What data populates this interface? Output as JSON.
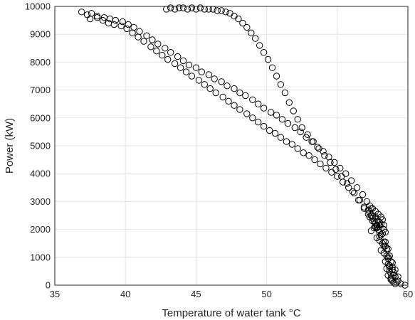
{
  "chart_data": {
    "type": "scatter",
    "title": "",
    "xlabel": "Temperature of water tank °C",
    "ylabel": "Power (kW)",
    "xlim": [
      35,
      60
    ],
    "ylim": [
      0,
      10000
    ],
    "xticks": [
      35,
      40,
      45,
      50,
      55,
      60
    ],
    "yticks": [
      0,
      1000,
      2000,
      3000,
      4000,
      5000,
      6000,
      7000,
      8000,
      9000,
      10000
    ],
    "xtick_labels": [
      "35",
      "40",
      "45",
      "50",
      "55",
      "60"
    ],
    "ytick_labels": [
      "0",
      "1000",
      "2000",
      "3000",
      "4000",
      "5000",
      "6000",
      "7000",
      "8000",
      "9000",
      "10000"
    ],
    "grid": true,
    "marker": "circle-open",
    "colors": {
      "marker": "#000000",
      "grid": "#e3e3e3",
      "axis": "#262626"
    },
    "series": [
      {
        "x": [
          36.9,
          37.3,
          37.6,
          38.0,
          38.5,
          38.9,
          39.3,
          39.8,
          40.2,
          40.6,
          41.0,
          41.5,
          41.9,
          42.3,
          42.8,
          43.2,
          43.7,
          44.1,
          44.5,
          45.0,
          45.4,
          45.9,
          46.3,
          46.8,
          47.2,
          47.7,
          48.1,
          48.5,
          49.0,
          49.4,
          49.8,
          50.3,
          50.7,
          51.1,
          51.5,
          52.0,
          52.4,
          52.8,
          53.2,
          53.6,
          54.0,
          54.4,
          54.8,
          55.2,
          55.6,
          56.0,
          56.4,
          56.8,
          57.1,
          57.4,
          57.7,
          58.0,
          58.2,
          58.4,
          58.6,
          58.7,
          58.8,
          58.9,
          59.0,
          59.1,
          59.3,
          59.5,
          59.8
        ],
        "y": [
          9800,
          9700,
          9750,
          9650,
          9600,
          9550,
          9500,
          9450,
          9350,
          9250,
          9100,
          8950,
          8800,
          8650,
          8500,
          8350,
          8200,
          8050,
          7900,
          7800,
          7650,
          7550,
          7400,
          7300,
          7150,
          7050,
          6900,
          6800,
          6650,
          6500,
          6350,
          6200,
          6100,
          5950,
          5800,
          5650,
          5500,
          5300,
          5150,
          4950,
          4800,
          4600,
          4400,
          4200,
          4000,
          3750,
          3500,
          3250,
          3000,
          2750,
          2450,
          2150,
          1850,
          1550,
          1300,
          1050,
          850,
          650,
          450,
          300,
          150,
          50,
          0
        ]
      },
      {
        "x": [
          37.5,
          38.0,
          38.4,
          38.8,
          39.2,
          39.7,
          40.1,
          40.5,
          40.9,
          41.3,
          41.8,
          42.2,
          42.6,
          43.0,
          43.5,
          43.9,
          44.3,
          44.7,
          45.2,
          45.6,
          46.0,
          46.4,
          46.9,
          47.3,
          47.7,
          48.1,
          48.6,
          49.0,
          49.4,
          49.8,
          50.2,
          50.6,
          51.0,
          51.4,
          51.8,
          52.2,
          52.6,
          53.0,
          53.4,
          53.8,
          54.2,
          54.6,
          55.0,
          55.4,
          55.8,
          56.2,
          56.6,
          56.9,
          57.2,
          57.5,
          57.8,
          58.1,
          58.3,
          58.5,
          58.7,
          58.9,
          59.1,
          59.3
        ],
        "y": [
          9550,
          9600,
          9500,
          9400,
          9350,
          9300,
          9200,
          9050,
          8900,
          8750,
          8550,
          8400,
          8250,
          8100,
          7950,
          7800,
          7650,
          7500,
          7350,
          7200,
          7050,
          6900,
          6750,
          6600,
          6450,
          6300,
          6150,
          6000,
          5850,
          5700,
          5550,
          5450,
          5300,
          5150,
          5050,
          4900,
          4750,
          4650,
          4500,
          4350,
          4200,
          4050,
          3900,
          3700,
          3500,
          3300,
          3050,
          2800,
          2550,
          2300,
          2050,
          1800,
          1550,
          1300,
          1050,
          800,
          550,
          300
        ]
      },
      {
        "x": [
          42.9,
          43.2,
          43.5,
          43.8,
          44.1,
          44.4,
          44.7,
          45.0,
          45.3,
          45.6,
          45.9,
          46.2,
          46.5,
          46.8,
          47.1,
          47.4,
          47.7,
          48.0,
          48.3,
          48.6,
          48.9,
          49.2,
          49.5,
          49.8,
          50.1,
          50.4,
          50.7,
          51.0,
          51.3,
          51.6,
          51.9,
          52.2,
          52.5,
          52.9,
          53.3,
          53.7,
          54.1,
          54.5,
          54.9,
          55.3,
          55.7,
          56.1,
          56.5,
          56.9,
          57.3,
          57.7,
          58.0,
          58.3,
          58.6,
          58.9,
          59.2
        ],
        "y": [
          9900,
          9950,
          9900,
          9950,
          9950,
          9900,
          9950,
          9900,
          9950,
          9900,
          9900,
          9900,
          9850,
          9850,
          9800,
          9750,
          9650,
          9550,
          9400,
          9250,
          9050,
          8850,
          8600,
          8350,
          8100,
          7800,
          7500,
          7200,
          6900,
          6550,
          6250,
          5950,
          5650,
          5400,
          5150,
          4900,
          4650,
          4400,
          4150,
          3900,
          3650,
          3350,
          3050,
          2750,
          2450,
          2100,
          1750,
          1400,
          1000,
          550,
          100
        ]
      },
      {
        "x": [
          57.2,
          57.3,
          57.4,
          57.5,
          57.6,
          57.7,
          57.8,
          57.9,
          58.0,
          58.1,
          57.3,
          57.5,
          57.7,
          57.9,
          58.1,
          58.2,
          57.4,
          57.6,
          57.8,
          58.0,
          58.2,
          58.3,
          57.5,
          57.7,
          57.9,
          58.1,
          58.3,
          58.4,
          57.8,
          58.0,
          58.2,
          58.4,
          58.5,
          58.1,
          58.3,
          58.5,
          58.6,
          58.4,
          58.6,
          58.7,
          58.5,
          58.7,
          58.8,
          58.6,
          58.8,
          58.9,
          58.7,
          58.9,
          59.0,
          58.8,
          59.0,
          59.1
        ],
        "y": [
          2700,
          2600,
          2500,
          2400,
          2300,
          2200,
          2100,
          2000,
          1900,
          1800,
          2850,
          2750,
          2650,
          2550,
          2450,
          2350,
          1950,
          2050,
          2150,
          2250,
          2350,
          2150,
          2500,
          2400,
          2300,
          2200,
          2000,
          1900,
          1700,
          1600,
          1500,
          1400,
          1300,
          1250,
          1150,
          1050,
          950,
          850,
          750,
          650,
          600,
          500,
          400,
          350,
          250,
          150,
          700,
          550,
          350,
          200,
          100,
          50
        ]
      }
    ]
  }
}
